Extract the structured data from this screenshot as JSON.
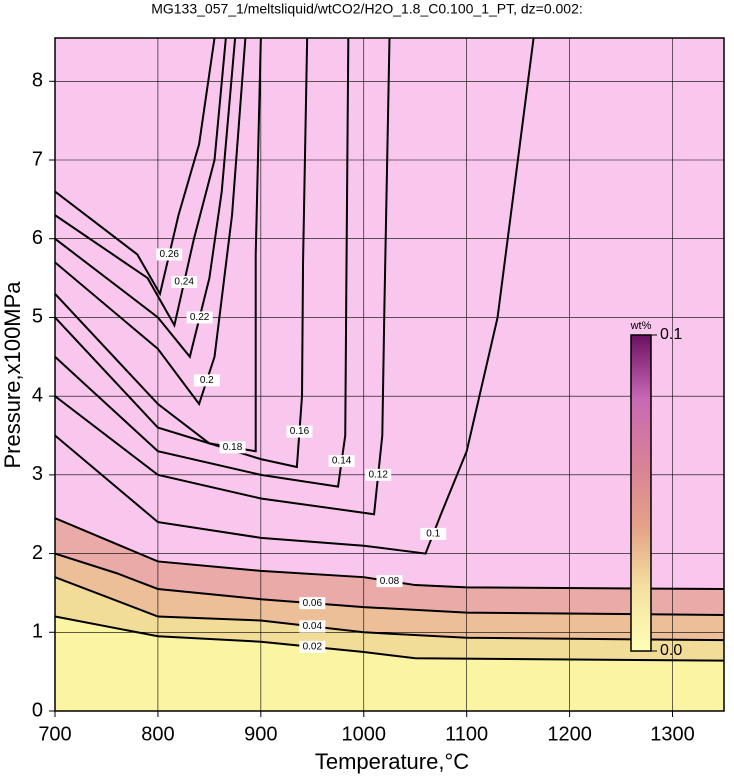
{
  "chart_data": {
    "type": "contour",
    "title": "MG133_057_1/meltsliquid/wtCO2/H2O_1.8_C0.100_1_PT, dz=0.002:",
    "xlabel": "Temperature,°C",
    "ylabel": "Pressure,x100MPa",
    "xlim": [
      700,
      1350
    ],
    "ylim": [
      0,
      8.55
    ],
    "xticks": [
      700,
      800,
      900,
      1000,
      1100,
      1200,
      1300
    ],
    "yticks": [
      0,
      1,
      2,
      3,
      4,
      5,
      6,
      7,
      8
    ],
    "grid": true,
    "background": "#f9c6ee",
    "contours": [
      {
        "level": 0.02,
        "fill": "#fbf4a2",
        "x": [
          700,
          800,
          900,
          1000,
          1050,
          1350
        ],
        "y": [
          1.2,
          0.95,
          0.88,
          0.75,
          0.67,
          0.64
        ]
      },
      {
        "level": 0.04,
        "fill": "#f1dc98",
        "x": [
          700,
          800,
          900,
          1000,
          1100,
          1350
        ],
        "y": [
          1.7,
          1.2,
          1.15,
          1.0,
          0.93,
          0.9
        ]
      },
      {
        "level": 0.06,
        "fill": "#ecbf98",
        "x": [
          700,
          760,
          800,
          900,
          1000,
          1100,
          1350
        ],
        "y": [
          2.0,
          1.75,
          1.55,
          1.42,
          1.32,
          1.25,
          1.22
        ]
      },
      {
        "level": 0.08,
        "fill": "#eaaaa8",
        "x": [
          700,
          800,
          900,
          1000,
          1050,
          1100,
          1350
        ],
        "y": [
          2.45,
          1.9,
          1.78,
          1.7,
          1.6,
          1.57,
          1.55
        ]
      },
      {
        "level": 0.1,
        "x": [
          700,
          800,
          900,
          1000,
          1060,
          1075,
          1100,
          1130,
          1165
        ],
        "y": [
          3.5,
          2.4,
          2.2,
          2.1,
          2.0,
          2.5,
          3.3,
          5.0,
          8.55
        ]
      },
      {
        "level": 0.12,
        "x": [
          700,
          800,
          900,
          1010,
          1018,
          1020,
          1025
        ],
        "y": [
          4.0,
          3.0,
          2.7,
          2.5,
          3.5,
          5.1,
          8.55
        ]
      },
      {
        "level": 0.14,
        "x": [
          700,
          800,
          900,
          975,
          982,
          983,
          985
        ],
        "y": [
          4.5,
          3.3,
          3.0,
          2.85,
          3.5,
          5.3,
          8.55
        ]
      },
      {
        "level": 0.16,
        "x": [
          700,
          800,
          900,
          935,
          940,
          941,
          945
        ],
        "y": [
          5.0,
          3.6,
          3.2,
          3.1,
          4.0,
          5.7,
          8.55
        ]
      },
      {
        "level": 0.18,
        "x": [
          700,
          800,
          850,
          895,
          895,
          900
        ],
        "y": [
          5.3,
          3.9,
          3.4,
          3.3,
          5.8,
          8.55
        ]
      },
      {
        "level": 0.2,
        "x": [
          700,
          800,
          840,
          855,
          872,
          885
        ],
        "y": [
          5.7,
          4.6,
          3.9,
          4.5,
          6.3,
          8.55
        ]
      },
      {
        "level": 0.22,
        "x": [
          700,
          800,
          831,
          850,
          862,
          875
        ],
        "y": [
          6.0,
          5.0,
          4.5,
          5.5,
          6.6,
          8.55
        ]
      },
      {
        "level": 0.24,
        "x": [
          700,
          790,
          816,
          835,
          855,
          866
        ],
        "y": [
          6.3,
          5.5,
          4.9,
          6.0,
          7.0,
          8.55
        ]
      },
      {
        "level": 0.26,
        "x": [
          700,
          780,
          802,
          820,
          840,
          855
        ],
        "y": [
          6.6,
          5.8,
          5.3,
          6.3,
          7.2,
          8.55
        ]
      }
    ],
    "colorbar": {
      "label": "wt%",
      "colormap": [
        "#ffffb8",
        "#f4e0a0",
        "#e4a088",
        "#d88098",
        "#c868b4",
        "#6a1060"
      ],
      "ticks": [
        {
          "value": 0,
          "label": "0.0"
        },
        0.1
      ]
    }
  }
}
